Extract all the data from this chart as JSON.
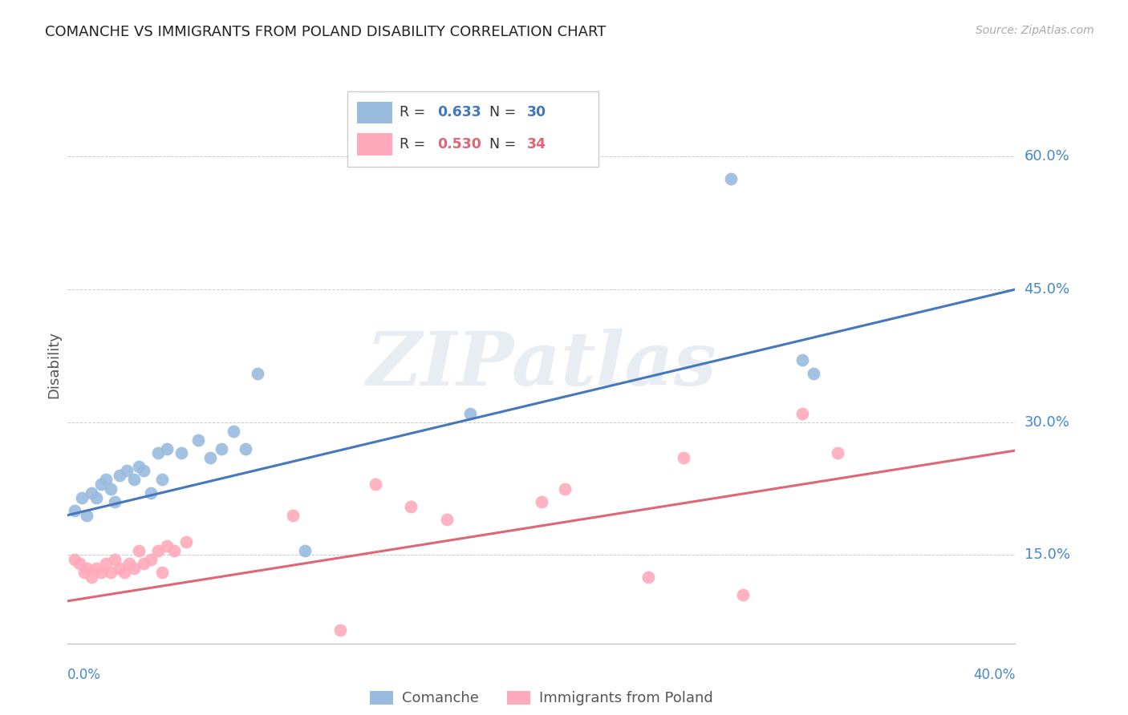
{
  "title": "COMANCHE VS IMMIGRANTS FROM POLAND DISABILITY CORRELATION CHART",
  "source": "Source: ZipAtlas.com",
  "ylabel": "Disability",
  "ytick_labels": [
    "60.0%",
    "45.0%",
    "30.0%",
    "15.0%"
  ],
  "ytick_values": [
    0.6,
    0.45,
    0.3,
    0.15
  ],
  "xlim": [
    0.0,
    0.4
  ],
  "ylim": [
    0.05,
    0.68
  ],
  "watermark": "ZIPatlas",
  "legend_labels": [
    "Comanche",
    "Immigrants from Poland"
  ],
  "blue_color": "#4477bb",
  "pink_color": "#dd6677",
  "blue_scatter_color": "#99bbdd",
  "pink_scatter_color": "#ffaabc",
  "comanche_x": [
    0.003,
    0.006,
    0.008,
    0.01,
    0.012,
    0.014,
    0.016,
    0.018,
    0.02,
    0.022,
    0.025,
    0.028,
    0.03,
    0.032,
    0.035,
    0.038,
    0.04,
    0.042,
    0.048,
    0.055,
    0.06,
    0.065,
    0.07,
    0.075,
    0.08,
    0.1,
    0.28,
    0.31,
    0.315,
    0.17
  ],
  "comanche_y": [
    0.2,
    0.215,
    0.195,
    0.22,
    0.215,
    0.23,
    0.235,
    0.225,
    0.21,
    0.24,
    0.245,
    0.235,
    0.25,
    0.245,
    0.22,
    0.265,
    0.235,
    0.27,
    0.265,
    0.28,
    0.26,
    0.27,
    0.29,
    0.27,
    0.355,
    0.155,
    0.575,
    0.37,
    0.355,
    0.31
  ],
  "poland_x": [
    0.003,
    0.005,
    0.007,
    0.008,
    0.01,
    0.012,
    0.014,
    0.016,
    0.018,
    0.02,
    0.022,
    0.024,
    0.026,
    0.028,
    0.03,
    0.032,
    0.035,
    0.038,
    0.04,
    0.042,
    0.045,
    0.05,
    0.095,
    0.115,
    0.13,
    0.145,
    0.16,
    0.2,
    0.21,
    0.245,
    0.26,
    0.285,
    0.31,
    0.325
  ],
  "poland_y": [
    0.145,
    0.14,
    0.13,
    0.135,
    0.125,
    0.135,
    0.13,
    0.14,
    0.13,
    0.145,
    0.135,
    0.13,
    0.14,
    0.135,
    0.155,
    0.14,
    0.145,
    0.155,
    0.13,
    0.16,
    0.155,
    0.165,
    0.195,
    0.065,
    0.23,
    0.205,
    0.19,
    0.21,
    0.225,
    0.125,
    0.26,
    0.105,
    0.31,
    0.265
  ],
  "blue_line": [
    0.195,
    0.45
  ],
  "pink_line": [
    0.098,
    0.268
  ],
  "background_color": "#ffffff",
  "grid_color": "#cccccc",
  "title_color": "#222222",
  "tick_label_color": "#4488cc"
}
